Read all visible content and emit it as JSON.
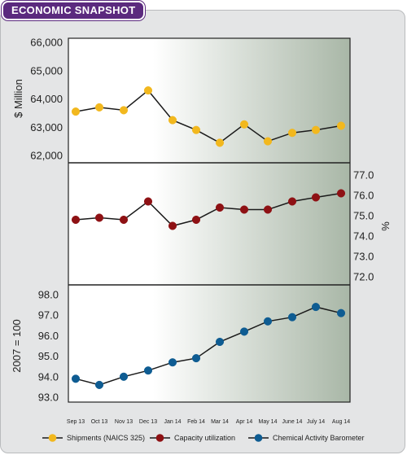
{
  "banner": {
    "title": "ECONOMIC SNAPSHOT"
  },
  "colors": {
    "banner": "#5b2a7e",
    "series_0": "#f2b81e",
    "series_1": "#8e1114",
    "series_2": "#0e5c92",
    "plot_gradient_start": "#ffffff",
    "plot_gradient_end": "#a9b7a7"
  },
  "chart_data": {
    "type": "line",
    "categories": [
      "Sep 13",
      "Oct 13",
      "Nov 13",
      "Dec 13",
      "Jan 14",
      "Feb 14",
      "Mar 14",
      "Apr 14",
      "May 14",
      "June 14",
      "July 14",
      "Aug 14"
    ],
    "panels": [
      {
        "series_index": 0,
        "ylabel": "$ Million",
        "ylabel_side": "left",
        "ylim": [
          62000,
          66000
        ],
        "yticks": [
          "66,000",
          "65,000",
          "64,000",
          "63,000",
          "62,000"
        ],
        "ytick_values": [
          66000,
          65000,
          64000,
          63000,
          62000
        ]
      },
      {
        "series_index": 1,
        "ylabel": "%",
        "ylabel_side": "right",
        "ylim": [
          72.0,
          77.0
        ],
        "yticks": [
          "77.0",
          "76.0",
          "75.0",
          "74.0",
          "73.0",
          "72.0"
        ],
        "ytick_values": [
          77,
          76,
          75,
          74,
          73,
          72
        ]
      },
      {
        "series_index": 2,
        "ylabel": "2007 = 100",
        "ylabel_side": "left",
        "ylim": [
          93.0,
          98.0
        ],
        "yticks": [
          "98.0",
          "97.0",
          "96.0",
          "95.0",
          "94.0",
          "93.0"
        ],
        "ytick_values": [
          98,
          97,
          96,
          95,
          94,
          93
        ]
      }
    ],
    "series": [
      {
        "name": "Shipments (NAICS 325)",
        "values": [
          63550,
          63700,
          63600,
          64300,
          63250,
          62900,
          62450,
          63100,
          62500,
          62800,
          62900,
          63050
        ]
      },
      {
        "name": "Capacity utilization",
        "values": [
          74.8,
          74.9,
          74.8,
          75.7,
          74.5,
          74.8,
          75.4,
          75.3,
          75.3,
          75.7,
          75.9,
          76.1
        ]
      },
      {
        "name": "Chemical Activity Barometer",
        "values": [
          93.9,
          93.6,
          94.0,
          94.3,
          94.7,
          94.9,
          95.7,
          96.2,
          96.7,
          96.9,
          97.4,
          97.1
        ]
      }
    ],
    "legend_position": "bottom",
    "grid": false
  }
}
